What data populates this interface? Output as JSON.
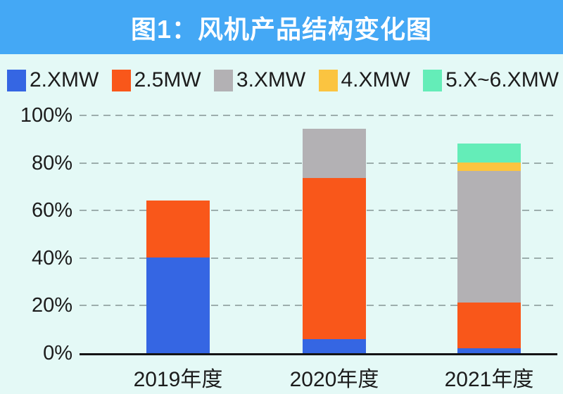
{
  "title": "图1：风机产品结构变化图",
  "colors": {
    "banner_bg": "#44A8F5",
    "chart_bg": "#E4F9F6",
    "title_text": "#FFFFFF",
    "text": "#1C1C1C",
    "gridline": "#9DAEAD",
    "axis": "#141414"
  },
  "chart_data": {
    "type": "bar",
    "stacked": true,
    "title": "图1：风机产品结构变化图",
    "categories": [
      "2019年度",
      "2020年度",
      "2021年度"
    ],
    "series": [
      {
        "name": "2.XMW",
        "color": "#3566E3",
        "values": [
          40,
          6,
          2
        ]
      },
      {
        "name": "2.5MW",
        "color": "#F9571A",
        "values": [
          23.5,
          67,
          19
        ]
      },
      {
        "name": "3.XMW",
        "color": "#B3B1B4",
        "values": [
          0,
          20.5,
          55
        ]
      },
      {
        "name": "4.XMW",
        "color": "#FBC440",
        "values": [
          0,
          0,
          3.5
        ]
      },
      {
        "name": "5.X~6.XMW",
        "color": "#64EDB8",
        "values": [
          0,
          0,
          8
        ]
      }
    ],
    "totals": [
      63.5,
      93.5,
      87.5
    ],
    "xlabel": "",
    "ylabel": "",
    "ylim": [
      0,
      100
    ],
    "yticks": [
      "0%",
      "20%",
      "40%",
      "60%",
      "80%",
      "100%"
    ],
    "grid": "horizontal-dashed",
    "legend_position": "top"
  }
}
